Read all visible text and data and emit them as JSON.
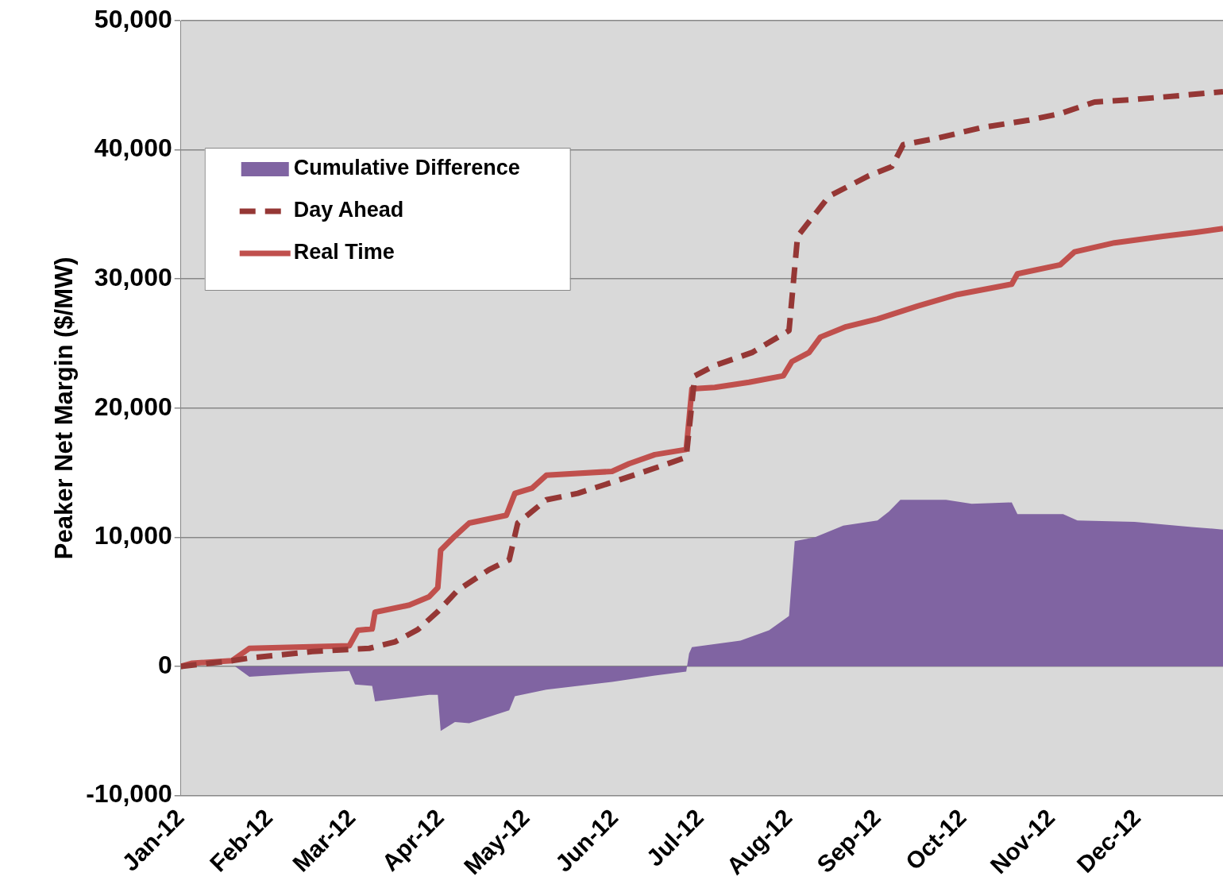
{
  "chart_data": {
    "type": "line",
    "ylabel": "Peaker Net Margin ($/MW)",
    "xlim": [
      "2012-01-01",
      "2012-12-31"
    ],
    "xticks": [
      {
        "value": "2012-01-01",
        "label": "Jan-12"
      },
      {
        "value": "2012-02-01",
        "label": "Feb-12"
      },
      {
        "value": "2012-03-01",
        "label": "Mar-12"
      },
      {
        "value": "2012-04-01",
        "label": "Apr-12"
      },
      {
        "value": "2012-05-01",
        "label": "May-12"
      },
      {
        "value": "2012-06-01",
        "label": "Jun-12"
      },
      {
        "value": "2012-07-01",
        "label": "Jul-12"
      },
      {
        "value": "2012-08-01",
        "label": "Aug-12"
      },
      {
        "value": "2012-09-01",
        "label": "Sep-12"
      },
      {
        "value": "2012-10-01",
        "label": "Oct-12"
      },
      {
        "value": "2012-11-01",
        "label": "Nov-12"
      },
      {
        "value": "2012-12-01",
        "label": "Dec-12"
      }
    ],
    "ylim": [
      -10000,
      50000
    ],
    "yticks": [
      {
        "value": -10000,
        "label": "-10,000"
      },
      {
        "value": 0,
        "label": "0"
      },
      {
        "value": 10000,
        "label": "10,000"
      },
      {
        "value": 20000,
        "label": "20,000"
      },
      {
        "value": 30000,
        "label": "30,000"
      },
      {
        "value": 40000,
        "label": "40,000"
      },
      {
        "value": 50000,
        "label": "50,000"
      }
    ],
    "grid": "y",
    "legend": "top left",
    "series": [
      {
        "name": "Cumulative Difference",
        "type": "area",
        "color": "#8064a2",
        "x": [
          "2012-01-01",
          "2012-01-20",
          "2012-01-25",
          "2012-02-15",
          "2012-02-29",
          "2012-03-02",
          "2012-03-08",
          "2012-03-09",
          "2012-03-28",
          "2012-03-31",
          "2012-04-01",
          "2012-04-06",
          "2012-04-11",
          "2012-04-25",
          "2012-04-27",
          "2012-05-08",
          "2012-05-31",
          "2012-06-15",
          "2012-06-26",
          "2012-06-27",
          "2012-06-28",
          "2012-07-15",
          "2012-07-25",
          "2012-08-01",
          "2012-08-03",
          "2012-08-10",
          "2012-08-20",
          "2012-09-01",
          "2012-09-05",
          "2012-09-09",
          "2012-09-25",
          "2012-10-04",
          "2012-10-18",
          "2012-10-20",
          "2012-11-05",
          "2012-11-10",
          "2012-11-30",
          "2012-12-20",
          "2012-12-31"
        ],
        "values": [
          0,
          0,
          -800,
          -500,
          -350,
          -1400,
          -1500,
          -2700,
          -2200,
          -2200,
          -5000,
          -4300,
          -4400,
          -3400,
          -2300,
          -1800,
          -1200,
          -700,
          -400,
          1000,
          1500,
          2000,
          2800,
          3900,
          9700,
          10000,
          10900,
          11300,
          12000,
          12900,
          12900,
          12600,
          12700,
          11800,
          11800,
          11300,
          11200,
          10800,
          10600
        ]
      },
      {
        "name": "Day Ahead",
        "line_style": "dashed",
        "color": "#953735",
        "x": [
          "2012-01-01",
          "2012-01-19",
          "2012-01-25",
          "2012-02-16",
          "2012-03-07",
          "2012-03-16",
          "2012-03-24",
          "2012-03-31",
          "2012-04-07",
          "2012-04-18",
          "2012-04-25",
          "2012-04-28",
          "2012-05-08",
          "2012-05-19",
          "2012-06-02",
          "2012-06-17",
          "2012-06-26",
          "2012-06-29",
          "2012-07-06",
          "2012-07-19",
          "2012-08-01",
          "2012-08-04",
          "2012-08-15",
          "2012-08-29",
          "2012-09-06",
          "2012-09-10",
          "2012-09-22",
          "2012-10-07",
          "2012-10-24",
          "2012-11-04",
          "2012-11-16",
          "2012-11-30",
          "2012-12-16",
          "2012-12-31"
        ],
        "values": [
          0,
          450,
          650,
          1150,
          1400,
          1900,
          2850,
          4250,
          5900,
          7500,
          8250,
          11100,
          12900,
          13400,
          14400,
          15500,
          16200,
          22500,
          23300,
          24300,
          26000,
          33300,
          36400,
          38000,
          38700,
          40400,
          40900,
          41700,
          42300,
          42800,
          43700,
          43900,
          44200,
          44500
        ]
      },
      {
        "name": "Real Time",
        "line_style": "solid",
        "color": "#c0504d",
        "x": [
          "2012-01-01",
          "2012-01-05",
          "2012-01-19",
          "2012-01-25",
          "2012-02-29",
          "2012-03-03",
          "2012-03-08",
          "2012-03-09",
          "2012-03-21",
          "2012-03-28",
          "2012-03-31",
          "2012-04-01",
          "2012-04-06",
          "2012-04-11",
          "2012-04-24",
          "2012-04-27",
          "2012-05-03",
          "2012-05-08",
          "2012-05-31",
          "2012-06-06",
          "2012-06-15",
          "2012-06-26",
          "2012-06-28",
          "2012-07-06",
          "2012-07-18",
          "2012-07-30",
          "2012-08-02",
          "2012-08-08",
          "2012-08-12",
          "2012-08-21",
          "2012-09-01",
          "2012-09-15",
          "2012-09-29",
          "2012-10-18",
          "2012-10-20",
          "2012-11-04",
          "2012-11-09",
          "2012-11-23",
          "2012-12-10",
          "2012-12-21",
          "2012-12-31"
        ],
        "values": [
          0,
          250,
          450,
          1400,
          1600,
          2800,
          2900,
          4200,
          4750,
          5400,
          6100,
          9000,
          10100,
          11100,
          11700,
          13400,
          13800,
          14800,
          15100,
          15700,
          16400,
          16800,
          21500,
          21600,
          22000,
          22500,
          23600,
          24300,
          25500,
          26300,
          26900,
          27900,
          28800,
          29600,
          30400,
          31100,
          32100,
          32800,
          33300,
          33600,
          33900
        ]
      }
    ]
  }
}
